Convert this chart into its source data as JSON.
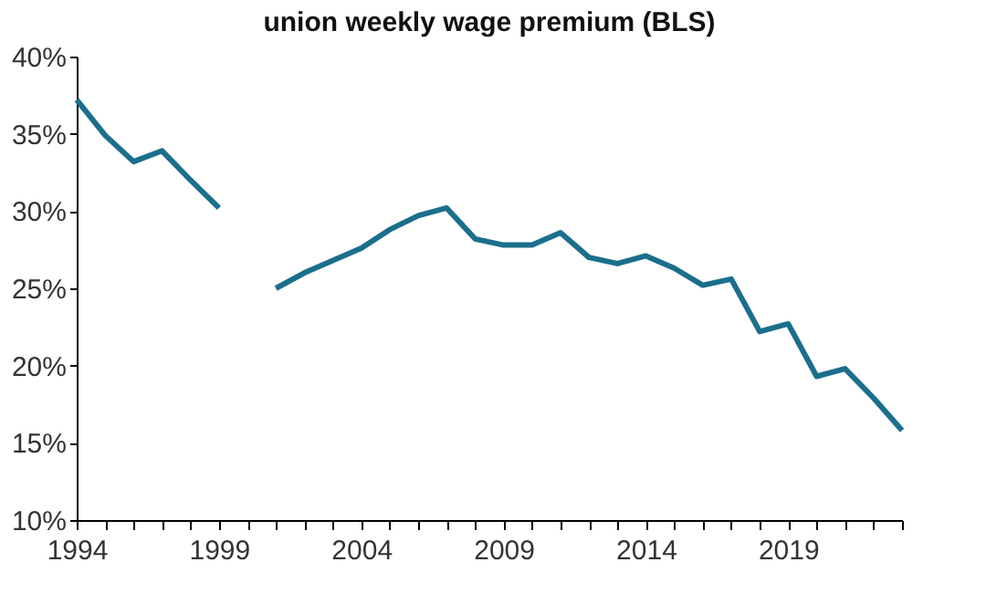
{
  "chart_data": {
    "type": "line",
    "title": "union weekly wage premium (BLS)",
    "x": [
      1994,
      1995,
      1996,
      1997,
      1998,
      1999,
      2000,
      2001,
      2002,
      2003,
      2004,
      2005,
      2006,
      2007,
      2008,
      2009,
      2010,
      2011,
      2012,
      2013,
      2014,
      2015,
      2016,
      2017,
      2018,
      2019,
      2020,
      2021,
      2022,
      2023
    ],
    "series": [
      {
        "color": "#1b6f8c",
        "values": [
          37.2,
          34.9,
          33.2,
          33.9,
          32.0,
          30.2,
          null,
          25.0,
          26.0,
          26.8,
          27.6,
          28.8,
          29.7,
          30.2,
          28.2,
          27.8,
          27.8,
          28.6,
          27.0,
          26.6,
          27.1,
          26.3,
          25.2,
          25.6,
          22.2,
          22.7,
          19.3,
          19.8,
          17.9,
          15.8
        ]
      }
    ],
    "xlim": [
      1994,
      2023
    ],
    "xticks": [
      1994,
      {
        "value": 1995,
        "label": null
      },
      {
        "value": 1996,
        "label": null
      },
      {
        "value": 1997,
        "label": null
      },
      {
        "value": 1998,
        "label": null
      },
      1999,
      {
        "value": 2000,
        "label": null
      },
      {
        "value": 2001,
        "label": null
      },
      {
        "value": 2002,
        "label": null
      },
      {
        "value": 2003,
        "label": null
      },
      2004,
      {
        "value": 2005,
        "label": null
      },
      {
        "value": 2006,
        "label": null
      },
      {
        "value": 2007,
        "label": null
      },
      {
        "value": 2008,
        "label": null
      },
      2009,
      {
        "value": 2010,
        "label": null
      },
      {
        "value": 2011,
        "label": null
      },
      {
        "value": 2012,
        "label": null
      },
      {
        "value": 2013,
        "label": null
      },
      2014,
      {
        "value": 2015,
        "label": null
      },
      {
        "value": 2016,
        "label": null
      },
      {
        "value": 2017,
        "label": null
      },
      {
        "value": 2018,
        "label": null
      },
      2019,
      {
        "value": 2020,
        "label": null
      },
      {
        "value": 2021,
        "label": null
      },
      {
        "value": 2022,
        "label": null
      },
      {
        "value": 2023,
        "label": null
      }
    ],
    "ylim": [
      10,
      40
    ],
    "yticks": [
      {
        "value": 10,
        "label": "10%"
      },
      {
        "value": 15,
        "label": "15%"
      },
      {
        "value": 20,
        "label": "20%"
      },
      {
        "value": 25,
        "label": "25%"
      },
      {
        "value": 30,
        "label": "30%"
      },
      {
        "value": 35,
        "label": "35%"
      },
      {
        "value": 40,
        "label": "40%"
      }
    ],
    "grid": false,
    "line_style": "solid",
    "marker": "none"
  }
}
